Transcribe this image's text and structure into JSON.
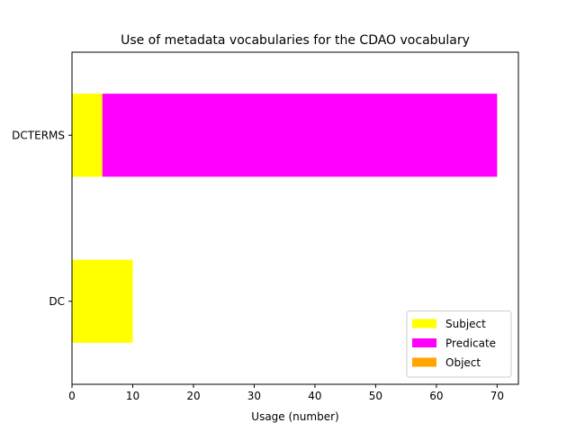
{
  "chart_data": {
    "type": "bar",
    "orientation": "horizontal",
    "stacked": true,
    "title": "Use of metadata vocabularies for the CDAO vocabulary",
    "xlabel": "Usage (number)",
    "ylabel": "",
    "categories": [
      "DC",
      "DCTERMS"
    ],
    "series": [
      {
        "name": "Subject",
        "color": "#ffff00",
        "values": [
          10,
          5
        ]
      },
      {
        "name": "Predicate",
        "color": "#ff00ff",
        "values": [
          0,
          65
        ]
      },
      {
        "name": "Object",
        "color": "#ffa500",
        "values": [
          0,
          0
        ]
      }
    ],
    "xlim": [
      0,
      73.5
    ],
    "xticks": [
      0,
      10,
      20,
      30,
      40,
      50,
      60,
      70
    ],
    "grid": false,
    "legend_position": "lower-right"
  }
}
